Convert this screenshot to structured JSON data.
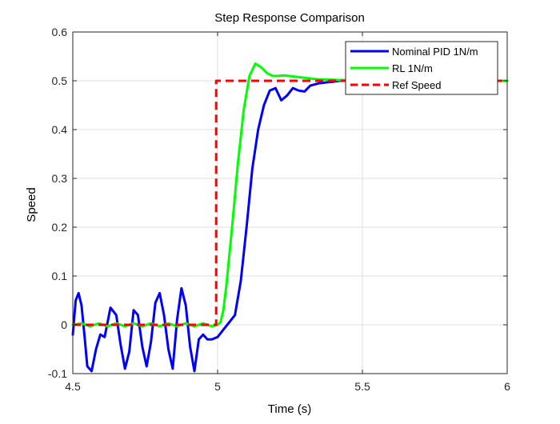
{
  "chart_data": {
    "type": "line",
    "title": "Step Response Comparison",
    "xlabel": "Time (s)",
    "ylabel": "Speed",
    "xlim": [
      4.5,
      6
    ],
    "ylim": [
      -0.1,
      0.6
    ],
    "xticks": [
      4.5,
      5,
      5.5,
      6
    ],
    "xtick_labels": [
      "4.5",
      "5",
      "5.5",
      "6"
    ],
    "yticks": [
      -0.1,
      0,
      0.1,
      0.2,
      0.3,
      0.4,
      0.5,
      0.6
    ],
    "ytick_labels": [
      "-0.1",
      "0",
      "0.1",
      "0.2",
      "0.3",
      "0.4",
      "0.5",
      "0.6"
    ],
    "grid": true,
    "legend_position": "top-right",
    "series": [
      {
        "name": "Nominal PID 1N/m",
        "color": "#0000ff",
        "style": "solid",
        "x": [
          4.5,
          4.51,
          4.52,
          4.53,
          4.54,
          4.55,
          4.565,
          4.58,
          4.595,
          4.61,
          4.63,
          4.65,
          4.665,
          4.68,
          4.695,
          4.71,
          4.725,
          4.74,
          4.755,
          4.77,
          4.785,
          4.8,
          4.815,
          4.83,
          4.845,
          4.86,
          4.875,
          4.89,
          4.905,
          4.92,
          4.935,
          4.95,
          4.965,
          4.98,
          5.0,
          5.02,
          5.04,
          5.06,
          5.08,
          5.1,
          5.12,
          5.14,
          5.16,
          5.18,
          5.2,
          5.22,
          5.24,
          5.26,
          5.28,
          5.3,
          5.32,
          5.35,
          5.38,
          5.4,
          5.42,
          5.45,
          5.5,
          5.55,
          5.6,
          5.7,
          5.8,
          5.9,
          6.0
        ],
        "y": [
          -0.02,
          0.05,
          0.065,
          0.04,
          -0.02,
          -0.085,
          -0.095,
          -0.05,
          -0.02,
          -0.025,
          0.035,
          0.02,
          -0.04,
          -0.09,
          -0.055,
          0.03,
          0.02,
          -0.045,
          -0.085,
          -0.035,
          0.045,
          0.065,
          0.02,
          -0.05,
          -0.09,
          0.01,
          0.075,
          0.04,
          -0.045,
          -0.095,
          -0.03,
          -0.02,
          -0.03,
          -0.03,
          -0.025,
          -0.01,
          0.005,
          0.02,
          0.09,
          0.2,
          0.32,
          0.4,
          0.45,
          0.48,
          0.485,
          0.46,
          0.47,
          0.485,
          0.48,
          0.478,
          0.49,
          0.495,
          0.497,
          0.498,
          0.5,
          0.5,
          0.5,
          0.5,
          0.5,
          0.5,
          0.5,
          0.5,
          0.5
        ]
      },
      {
        "name": "RL 1N/m",
        "color": "#00ff00",
        "style": "solid",
        "x": [
          4.5,
          4.53,
          4.56,
          4.59,
          4.62,
          4.65,
          4.68,
          4.71,
          4.74,
          4.77,
          4.8,
          4.83,
          4.86,
          4.89,
          4.92,
          4.95,
          4.98,
          5.0,
          5.01,
          5.02,
          5.03,
          5.05,
          5.07,
          5.09,
          5.11,
          5.13,
          5.15,
          5.17,
          5.19,
          5.21,
          5.23,
          5.26,
          5.3,
          5.35,
          5.4,
          5.45,
          5.5,
          5.6,
          5.8,
          6.0
        ],
        "y": [
          0.0,
          0.003,
          -0.003,
          0.003,
          -0.003,
          0.003,
          -0.003,
          0.003,
          -0.003,
          0.003,
          -0.003,
          0.003,
          -0.003,
          0.003,
          -0.003,
          0.003,
          -0.003,
          0.0,
          0.005,
          0.03,
          0.08,
          0.2,
          0.33,
          0.44,
          0.51,
          0.535,
          0.528,
          0.516,
          0.51,
          0.51,
          0.511,
          0.509,
          0.506,
          0.503,
          0.502,
          0.501,
          0.5,
          0.5,
          0.5,
          0.5
        ]
      },
      {
        "name": "Ref Speed",
        "color": "#ff0000",
        "style": "dashed",
        "x": [
          4.5,
          4.995,
          4.995,
          6.0
        ],
        "y": [
          0.0,
          0.0,
          0.5,
          0.5
        ]
      }
    ]
  }
}
